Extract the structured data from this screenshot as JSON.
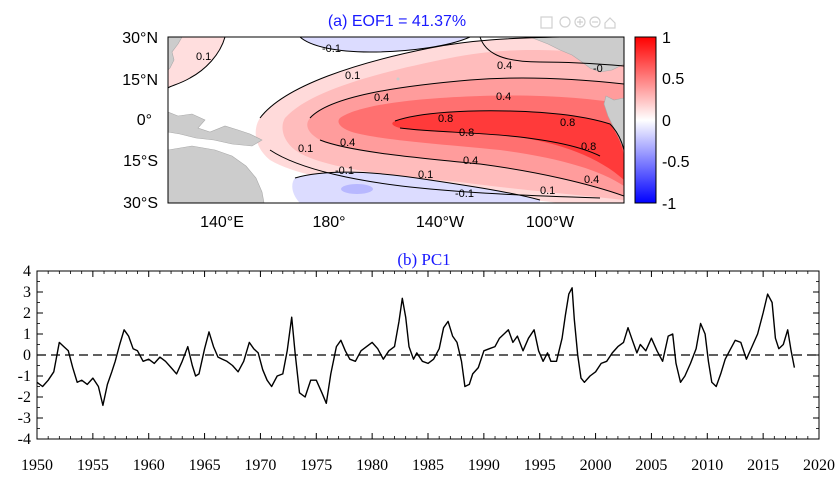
{
  "toolbar": {
    "icons": [
      "save-icon",
      "pan-icon",
      "zoom-in-icon",
      "zoom-out-icon",
      "home-icon"
    ]
  },
  "chart_data": [
    {
      "type": "heatmap",
      "title": "(a) EOF1 = 41.37%",
      "title_color": "#1a1aff",
      "lat_ticks": [
        "30°N",
        "15°N",
        "0°",
        "15°S",
        "30°S"
      ],
      "lon_ticks": [
        "140°E",
        "180°",
        "140°W",
        "100°W"
      ],
      "lon_range": [
        120,
        290
      ],
      "lat_range": [
        -30,
        30
      ],
      "colorbar": {
        "ticks": [
          "1",
          "0.5",
          "0",
          "-0.5",
          "-1"
        ],
        "range": [
          -1,
          1
        ],
        "min_color": "#0000ff",
        "max_color": "#ff0000"
      },
      "contour_labels": [
        {
          "text": "0.1"
        },
        {
          "text": "-0.1"
        },
        {
          "text": "0.1"
        },
        {
          "text": "0.4"
        },
        {
          "text": "0.4"
        },
        {
          "text": "0.4"
        },
        {
          "text": "0.8"
        },
        {
          "text": "0.8"
        },
        {
          "text": "0.8"
        },
        {
          "text": "0.8"
        },
        {
          "text": "0.1"
        },
        {
          "text": "0.4"
        },
        {
          "text": "-0.1"
        },
        {
          "text": "0.1"
        },
        {
          "text": "-0.1"
        },
        {
          "text": "0.1"
        },
        {
          "text": "0.4"
        },
        {
          "text": "0.4"
        },
        {
          "text": "-0"
        }
      ]
    },
    {
      "type": "line",
      "title": "(b) PC1",
      "title_color": "#1a1aff",
      "xlim": [
        1950,
        2020
      ],
      "ylim": [
        -4,
        4
      ],
      "x_ticks": [
        "1950",
        "1955",
        "1960",
        "1965",
        "1970",
        "1975",
        "1980",
        "1985",
        "1990",
        "1995",
        "2000",
        "2005",
        "2010",
        "2015",
        "2020"
      ],
      "y_ticks": [
        "4",
        "3",
        "2",
        "1",
        "0",
        "-1",
        "-2",
        "-3",
        "-4"
      ],
      "reference_line": 0,
      "series": [
        {
          "name": "PC1",
          "x": [
            1950.0,
            1950.5,
            1951.0,
            1951.5,
            1952.0,
            1952.4,
            1952.8,
            1953.2,
            1953.6,
            1954.0,
            1954.5,
            1955.0,
            1955.5,
            1955.9,
            1956.3,
            1956.7,
            1957.0,
            1957.4,
            1957.8,
            1958.2,
            1958.6,
            1959.0,
            1959.5,
            1960.0,
            1960.5,
            1961.0,
            1961.5,
            1962.0,
            1962.5,
            1963.0,
            1963.5,
            1963.9,
            1964.2,
            1964.5,
            1965.0,
            1965.4,
            1965.8,
            1966.2,
            1966.6,
            1967.0,
            1967.5,
            1968.0,
            1968.5,
            1969.0,
            1969.4,
            1969.8,
            1970.2,
            1970.6,
            1971.0,
            1971.5,
            1972.0,
            1972.4,
            1972.8,
            1973.1,
            1973.5,
            1974.0,
            1974.5,
            1975.0,
            1975.5,
            1975.9,
            1976.3,
            1976.8,
            1977.2,
            1977.6,
            1978.0,
            1978.5,
            1979.0,
            1979.5,
            1980.0,
            1980.5,
            1981.0,
            1981.5,
            1982.0,
            1982.4,
            1982.7,
            1983.0,
            1983.3,
            1983.7,
            1984.0,
            1984.5,
            1985.0,
            1985.5,
            1986.0,
            1986.4,
            1986.8,
            1987.2,
            1987.6,
            1988.0,
            1988.3,
            1988.7,
            1989.0,
            1989.5,
            1990.0,
            1990.5,
            1991.0,
            1991.4,
            1991.8,
            1992.2,
            1992.6,
            1993.0,
            1993.5,
            1994.0,
            1994.5,
            1994.9,
            1995.3,
            1995.7,
            1996.0,
            1996.5,
            1997.0,
            1997.3,
            1997.6,
            1997.9,
            1998.1,
            1998.4,
            1998.7,
            1999.0,
            1999.5,
            2000.0,
            2000.5,
            2001.0,
            2001.5,
            2002.0,
            2002.5,
            2002.9,
            2003.3,
            2003.7,
            2004.0,
            2004.5,
            2005.0,
            2005.5,
            2006.0,
            2006.5,
            2006.9,
            2007.2,
            2007.6,
            2008.0,
            2008.5,
            2009.0,
            2009.4,
            2009.8,
            2010.1,
            2010.4,
            2010.8,
            2011.2,
            2011.6,
            2012.0,
            2012.5,
            2013.0,
            2013.5,
            2014.0,
            2014.5,
            2015.0,
            2015.4,
            2015.8,
            2016.1,
            2016.4,
            2016.8,
            2017.2,
            2017.5,
            2017.8
          ],
          "values": [
            -1.3,
            -1.5,
            -1.2,
            -0.8,
            0.6,
            0.4,
            0.2,
            -0.6,
            -1.3,
            -1.2,
            -1.4,
            -1.1,
            -1.5,
            -2.4,
            -1.4,
            -0.8,
            -0.3,
            0.5,
            1.2,
            0.9,
            0.3,
            0.2,
            -0.3,
            -0.2,
            -0.4,
            -0.1,
            -0.3,
            -0.6,
            -0.9,
            -0.3,
            0.4,
            -0.5,
            -1.0,
            -0.9,
            0.3,
            1.1,
            0.4,
            -0.1,
            -0.2,
            -0.3,
            -0.5,
            -0.8,
            -0.3,
            0.6,
            0.3,
            0.1,
            -0.7,
            -1.2,
            -1.5,
            -1.0,
            -0.9,
            0.2,
            1.8,
            0.1,
            -1.8,
            -2.0,
            -1.2,
            -1.2,
            -1.8,
            -2.3,
            -0.9,
            0.4,
            0.7,
            0.2,
            -0.2,
            -0.3,
            0.2,
            0.4,
            0.6,
            0.3,
            -0.2,
            0.2,
            0.4,
            1.6,
            2.7,
            1.8,
            0.4,
            -0.2,
            0.1,
            -0.3,
            -0.4,
            -0.2,
            0.3,
            1.3,
            1.6,
            0.9,
            0.6,
            -0.3,
            -1.5,
            -1.4,
            -0.9,
            -0.6,
            0.2,
            0.3,
            0.4,
            0.8,
            1.0,
            1.2,
            0.6,
            0.9,
            0.2,
            0.8,
            1.2,
            0.2,
            -0.3,
            0.1,
            -0.3,
            -0.3,
            0.8,
            1.9,
            2.9,
            3.2,
            1.7,
            0.0,
            -1.1,
            -1.3,
            -1.0,
            -0.8,
            -0.4,
            -0.3,
            0.1,
            0.4,
            0.6,
            1.3,
            0.7,
            0.1,
            0.5,
            0.2,
            0.8,
            0.2,
            -0.3,
            0.9,
            1.0,
            -0.4,
            -1.3,
            -1.0,
            -0.4,
            0.3,
            1.5,
            1.0,
            -0.3,
            -1.3,
            -1.5,
            -0.9,
            -0.2,
            0.2,
            0.7,
            0.6,
            -0.2,
            0.4,
            1.0,
            2.0,
            2.9,
            2.5,
            0.8,
            0.3,
            0.5,
            1.2,
            0.2,
            -0.6
          ]
        }
      ]
    }
  ]
}
